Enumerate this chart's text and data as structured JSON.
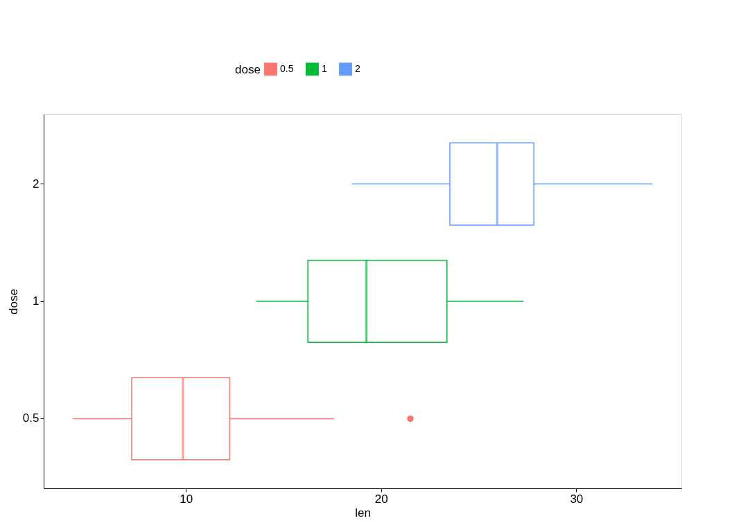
{
  "chart_data": {
    "type": "box",
    "orientation": "horizontal",
    "categories": [
      "2",
      "1",
      "0.5"
    ],
    "series": [
      {
        "name": "0.5",
        "color": "#f8766d",
        "boxes": [
          null,
          null,
          {
            "low": 4.2,
            "q1": 7.225,
            "median": 9.85,
            "q3": 12.25,
            "high": 17.6,
            "outliers": [
              21.5
            ]
          }
        ]
      },
      {
        "name": "1",
        "color": "#00ba38",
        "boxes": [
          null,
          {
            "low": 13.6,
            "q1": 16.25,
            "median": 19.25,
            "q3": 23.375,
            "high": 27.3
          },
          null
        ]
      },
      {
        "name": "2",
        "color": "#619cff",
        "boxes": [
          {
            "low": 18.5,
            "q1": 23.525,
            "median": 25.95,
            "q3": 27.825,
            "high": 33.9
          },
          null,
          null
        ]
      }
    ],
    "xlabel": "len",
    "ylabel": "dose",
    "legend_title": "dose",
    "legend": "top",
    "xlim": [
      2.715,
      35.385
    ],
    "xticks": [
      10,
      20,
      30
    ],
    "grid": false
  }
}
